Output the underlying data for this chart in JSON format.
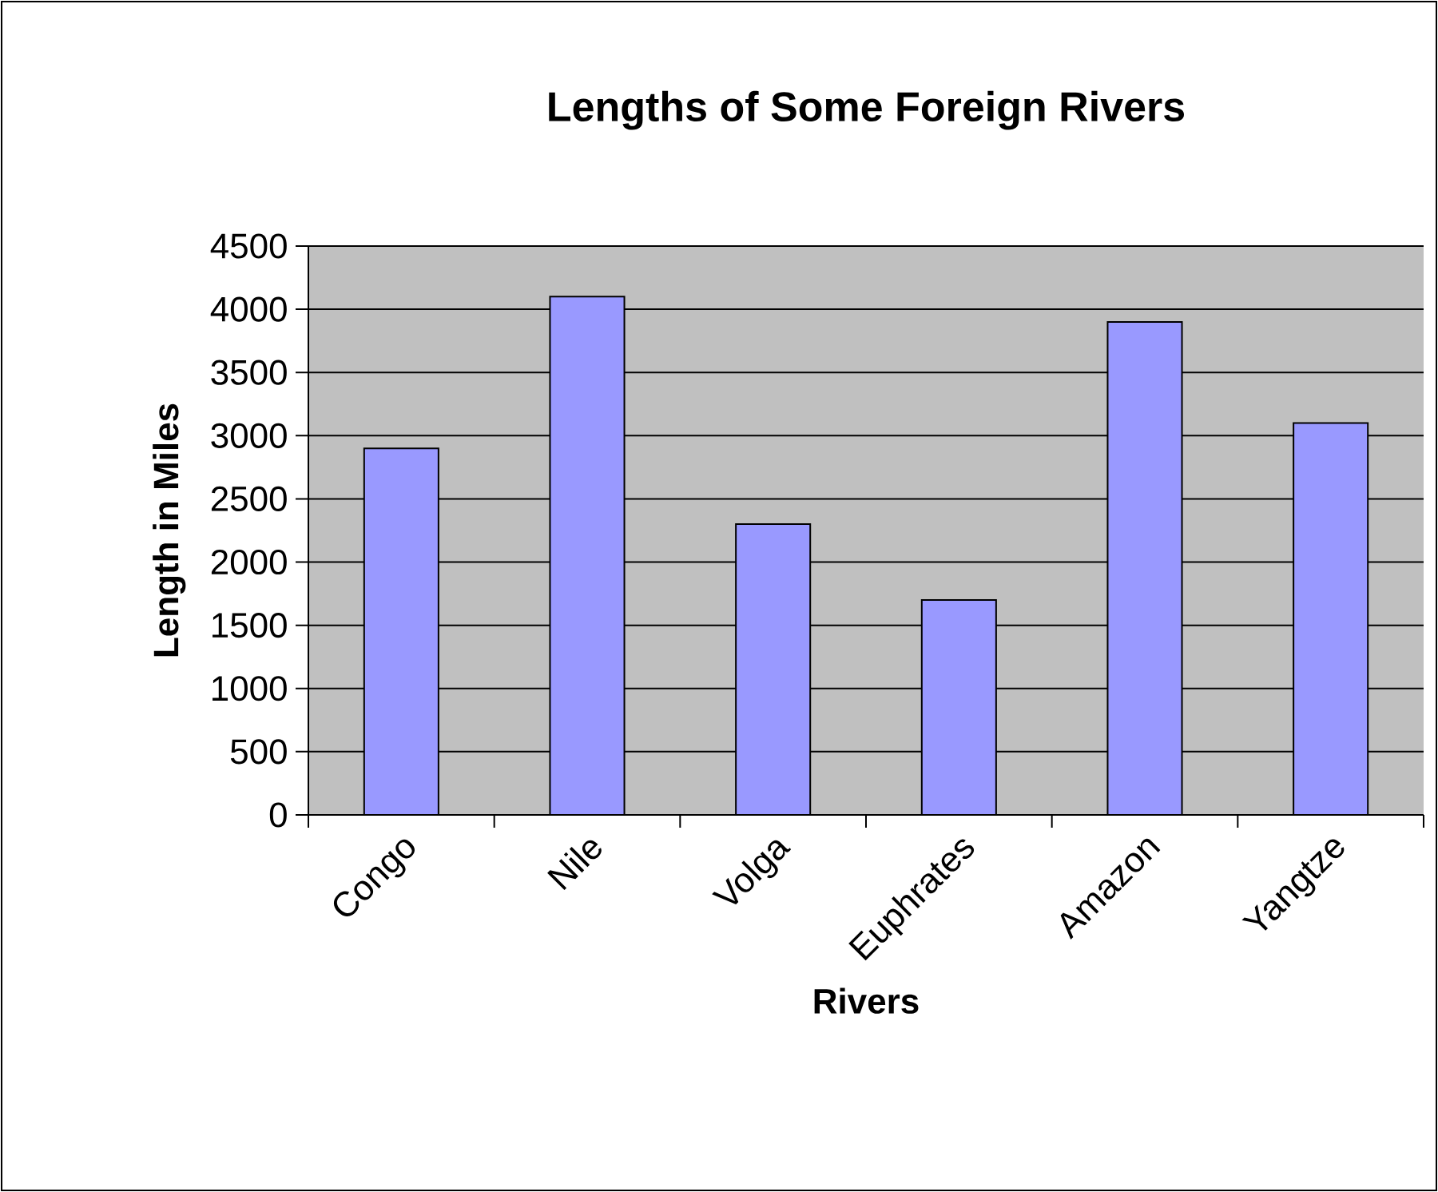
{
  "chart_data": {
    "type": "bar",
    "title": "Lengths of Some Foreign Rivers",
    "xlabel": "Rivers",
    "ylabel": "Length in Miles",
    "categories": [
      "Congo",
      "Nile",
      "Volga",
      "Euphrates",
      "Amazon",
      "Yangtze"
    ],
    "values": [
      2900,
      4100,
      2300,
      1700,
      3900,
      3100
    ],
    "color": "#9999ff",
    "ylim": [
      0,
      4500
    ],
    "yticks": [
      0,
      500,
      1000,
      1500,
      2000,
      2500,
      3000,
      3500,
      4000,
      4500
    ],
    "grid": "y"
  }
}
